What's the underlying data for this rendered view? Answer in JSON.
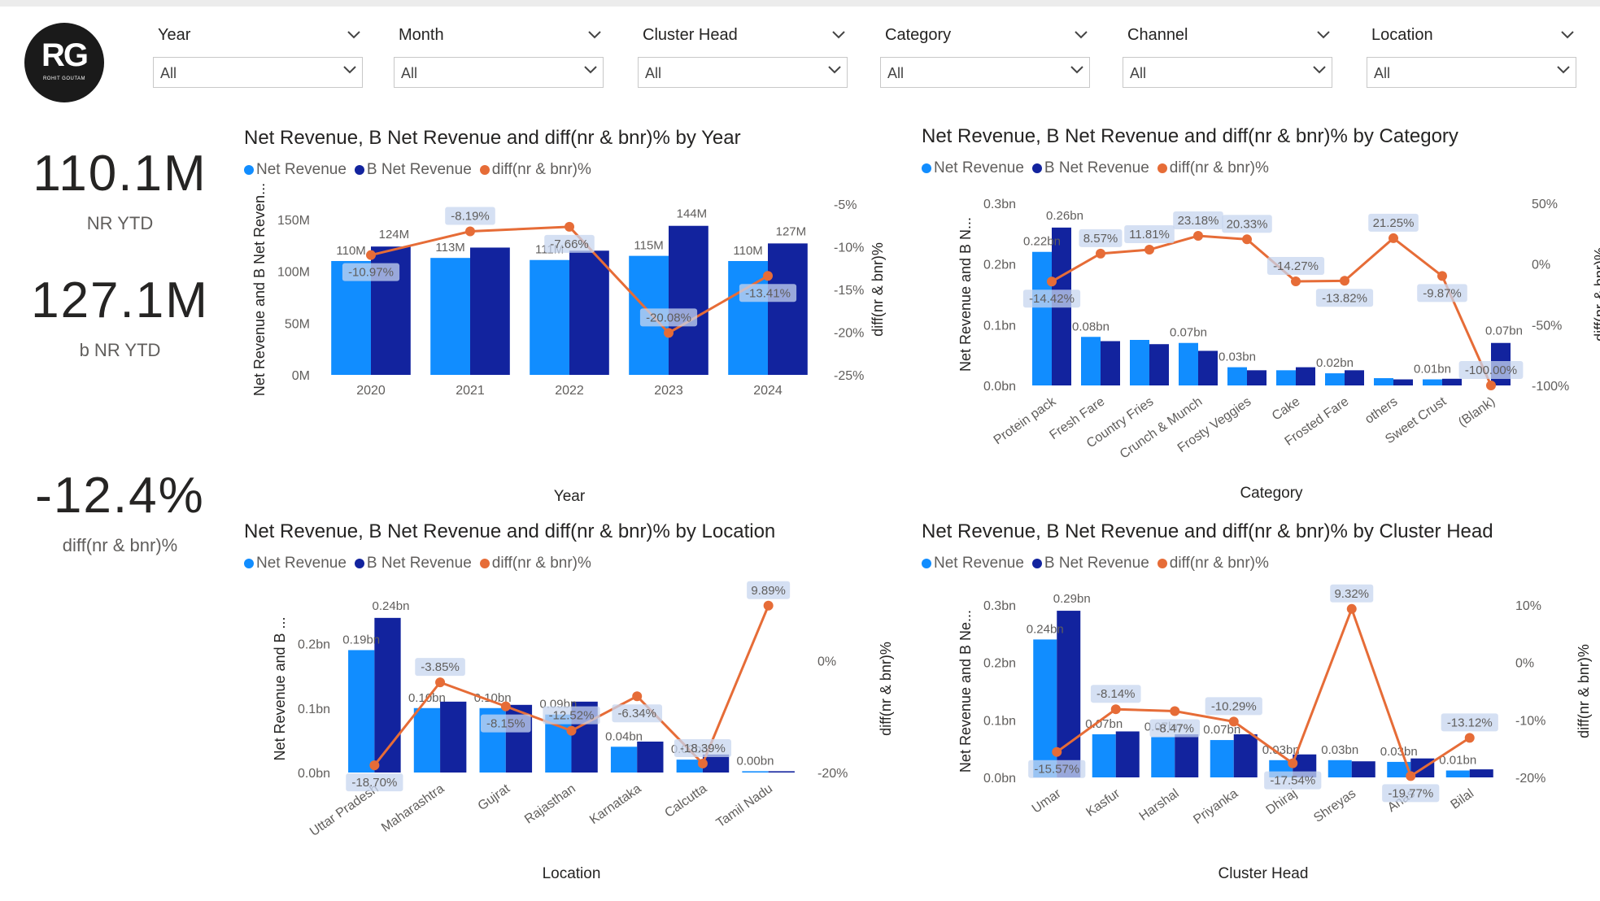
{
  "logo": {
    "text": "RG",
    "subtitle": "ROHIT GOUTAM"
  },
  "slicers": [
    {
      "title": "Year",
      "value": "All"
    },
    {
      "title": "Month",
      "value": "All"
    },
    {
      "title": "Cluster Head",
      "value": "All"
    },
    {
      "title": "Category",
      "value": "All"
    },
    {
      "title": "Channel",
      "value": "All"
    },
    {
      "title": "Location",
      "value": "All"
    }
  ],
  "kpis": [
    {
      "value": "110.1M",
      "label": "NR YTD"
    },
    {
      "value": "127.1M",
      "label": "b NR YTD"
    },
    {
      "value": "-12.4%",
      "label": "diff(nr & bnr)%"
    }
  ],
  "legend": {
    "a": "Net Revenue",
    "b": "B Net Revenue",
    "c": "diff(nr & bnr)%"
  },
  "colors": {
    "nr": "#118dff",
    "bnr": "#12239e",
    "diff": "#e66c37"
  },
  "chart_data": [
    {
      "id": "year",
      "type": "bar",
      "title": "Net Revenue, B Net Revenue and diff(nr & bnr)% by Year",
      "xlabel": "Year",
      "ylabel": "Net Revenue and B Net Reven...",
      "y2label": "diff(nr & bnr)%",
      "categories": [
        "2020",
        "2021",
        "2022",
        "2023",
        "2024"
      ],
      "series": [
        {
          "name": "Net Revenue",
          "values": [
            110,
            113,
            111,
            115,
            110
          ]
        },
        {
          "name": "B Net Revenue",
          "values": [
            124,
            123,
            120,
            144,
            127
          ]
        },
        {
          "name": "diff(nr & bnr)%",
          "values": [
            -10.97,
            -8.19,
            -7.66,
            -20.08,
            -13.41
          ]
        }
      ],
      "nr_labels": [
        "110M",
        "113M",
        "111M",
        "115M",
        "110M"
      ],
      "bnr_labels": [
        "124M",
        "",
        "",
        "144M",
        "127M"
      ],
      "diff_labels": [
        "-10.97%",
        "-8.19%",
        "-7.66%",
        "-20.08%",
        "-13.41%"
      ],
      "yticks": [
        "0M",
        "50M",
        "100M",
        "150M"
      ],
      "ylim": [
        0,
        165
      ],
      "y2ticks": [
        "-25%",
        "-20%",
        "-15%",
        "-10%",
        "-5%"
      ],
      "y2lim": [
        -25,
        -5
      ]
    },
    {
      "id": "category",
      "type": "bar",
      "title": "Net Revenue, B Net Revenue and diff(nr & bnr)% by Category",
      "xlabel": "Category",
      "ylabel": "Net Revenue and B N...",
      "y2label": "diff(nr & bnr)%",
      "categories": [
        "Protein pack",
        "Fresh Fare",
        "Country Fries",
        "Crunch & Munch",
        "Frosty Veggies",
        "Cake",
        "Frosted Fare",
        "others",
        "Sweet Crust",
        "(Blank)"
      ],
      "series": [
        {
          "name": "Net Revenue",
          "values": [
            0.22,
            0.08,
            0.075,
            0.07,
            0.03,
            0.025,
            0.02,
            0.012,
            0.01,
            0
          ]
        },
        {
          "name": "B Net Revenue",
          "values": [
            0.26,
            0.073,
            0.068,
            0.057,
            0.025,
            0.03,
            0.025,
            0.01,
            0.011,
            0.07
          ]
        },
        {
          "name": "diff(nr & bnr)%",
          "values": [
            -14.42,
            8.57,
            11.81,
            23.18,
            20.33,
            -14.27,
            -13.82,
            21.25,
            -9.87,
            -100.0
          ]
        }
      ],
      "nr_labels": [
        "0.22bn",
        "0.08bn",
        "",
        "0.07bn",
        "0.03bn",
        "",
        "0.02bn",
        "",
        "0.01bn",
        ""
      ],
      "bnr_labels": [
        "0.26bn",
        "",
        "",
        "",
        "",
        "",
        "",
        "",
        "",
        "0.07bn"
      ],
      "diff_labels": [
        "-14.42%",
        "8.57%",
        "11.81%",
        "23.18%",
        "20.33%",
        "-14.27%",
        "-13.82%",
        "21.25%",
        "-9.87%",
        "-100.00%"
      ],
      "yticks": [
        "0.0bn",
        "0.1bn",
        "0.2bn",
        "0.3bn"
      ],
      "ylim": [
        0,
        0.3
      ],
      "y2ticks": [
        "-100%",
        "-50%",
        "0%",
        "50%"
      ],
      "y2lim": [
        -100,
        50
      ]
    },
    {
      "id": "location",
      "type": "bar",
      "title": "Net Revenue, B Net Revenue and diff(nr & bnr)% by Location",
      "xlabel": "Location",
      "ylabel": "Net Revenue and B ...",
      "y2label": "diff(nr & bnr)%",
      "categories": [
        "Uttar Pradesh",
        "Maharashtra",
        "Gujrat",
        "Rajasthan",
        "Karnataka",
        "Calcutta",
        "Tamil Nadu"
      ],
      "series": [
        {
          "name": "Net Revenue",
          "values": [
            0.19,
            0.1,
            0.1,
            0.09,
            0.04,
            0.02,
            0.002
          ]
        },
        {
          "name": "B Net Revenue",
          "values": [
            0.24,
            0.11,
            0.105,
            0.11,
            0.048,
            0.028,
            0.002
          ]
        },
        {
          "name": "diff(nr & bnr)%",
          "values": [
            -18.7,
            -3.85,
            -8.15,
            -12.52,
            -6.34,
            -18.39,
            9.89
          ]
        }
      ],
      "nr_labels": [
        "0.19bn",
        "0.10bn",
        "0.10bn",
        "0.09bn",
        "0.04bn",
        "0.02bn",
        "0.00bn"
      ],
      "bnr_labels": [
        "0.24bn",
        "",
        "",
        "",
        "",
        "",
        ""
      ],
      "diff_labels": [
        "-18.70%",
        "-3.85%",
        "-8.15%",
        "-12.52%",
        "-6.34%",
        "-18.39%",
        "9.89%"
      ],
      "yticks": [
        "0.0bn",
        "0.1bn",
        "0.2bn"
      ],
      "ylim": [
        0,
        0.26
      ],
      "y2ticks": [
        "-20%",
        "0%"
      ],
      "y2lim": [
        -20,
        10
      ]
    },
    {
      "id": "cluster",
      "type": "bar",
      "title": "Net Revenue, B Net Revenue and diff(nr & bnr)% by Cluster Head",
      "xlabel": "Cluster Head",
      "ylabel": "Net Revenue and B Ne...",
      "y2label": "diff(nr & bnr)%",
      "categories": [
        "Umar",
        "Kasfur",
        "Harshal",
        "Priyanka",
        "Dhiraj",
        "Shreyas",
        "Anas",
        "Bilal"
      ],
      "series": [
        {
          "name": "Net Revenue",
          "values": [
            0.24,
            0.075,
            0.07,
            0.065,
            0.03,
            0.03,
            0.027,
            0.012
          ]
        },
        {
          "name": "B Net Revenue",
          "values": [
            0.29,
            0.08,
            0.075,
            0.075,
            0.04,
            0.028,
            0.033,
            0.014
          ]
        },
        {
          "name": "diff(nr & bnr)%",
          "values": [
            -15.57,
            -8.14,
            -8.47,
            -10.29,
            -17.54,
            9.32,
            -19.77,
            -13.12
          ]
        }
      ],
      "nr_labels": [
        "0.24bn",
        "0.07bn",
        "0.07bn",
        "0.07bn",
        "0.03bn",
        "0.03bn",
        "0.03bn",
        "0.01bn"
      ],
      "bnr_labels": [
        "0.29bn",
        "",
        "",
        "",
        "",
        "",
        "",
        ""
      ],
      "diff_labels": [
        "-15.57%",
        "-8.14%",
        "-8.47%",
        "-10.29%",
        "-17.54%",
        "9.32%",
        "-19.77%",
        "-13.12%"
      ],
      "yticks": [
        "0.0bn",
        "0.1bn",
        "0.2bn",
        "0.3bn"
      ],
      "ylim": [
        0,
        0.3
      ],
      "y2ticks": [
        "-20%",
        "-10%",
        "0%",
        "10%"
      ],
      "y2lim": [
        -20,
        10
      ]
    }
  ]
}
